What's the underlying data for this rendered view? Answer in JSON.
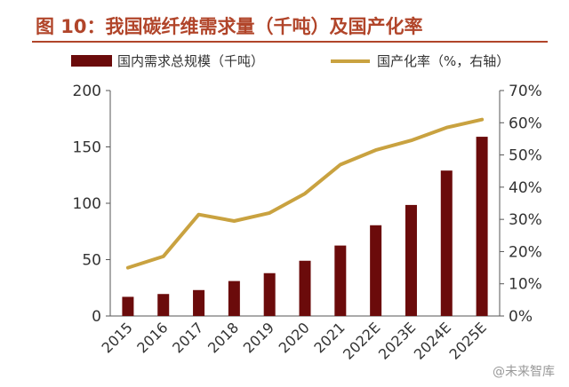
{
  "header": {
    "title": "图 10：我国碳纤维需求量（千吨）及国产化率"
  },
  "watermark": "@未来智库",
  "colors": {
    "bar": "#6b0b0b",
    "line": "#c9a240",
    "title": "#b1452a",
    "text": "#333333"
  },
  "chart_data": {
    "type": "bar",
    "categories": [
      "2015",
      "2016",
      "2017",
      "2018",
      "2019",
      "2020",
      "2021",
      "2022E",
      "2023E",
      "2024E",
      "2025E"
    ],
    "series": [
      {
        "name": "国内需求总规模（千吨）",
        "type": "bar",
        "axis": "left",
        "values": [
          17,
          19.5,
          23,
          31,
          38,
          49,
          62.5,
          80.5,
          98.5,
          129,
          159
        ]
      },
      {
        "name": "国产化率（%，右轴）",
        "type": "line",
        "axis": "right",
        "values": [
          15,
          18.5,
          31.5,
          29.5,
          32,
          38,
          47,
          51.5,
          54.5,
          58.5,
          61
        ]
      }
    ],
    "y_left": {
      "ylim": [
        0,
        200
      ],
      "ticks": [
        0,
        50,
        100,
        150,
        200
      ]
    },
    "y_right": {
      "ylim": [
        0,
        70
      ],
      "ticks": [
        "0%",
        "10%",
        "20%",
        "30%",
        "40%",
        "50%",
        "60%",
        "70%"
      ]
    },
    "legend": "top",
    "grid": false
  }
}
